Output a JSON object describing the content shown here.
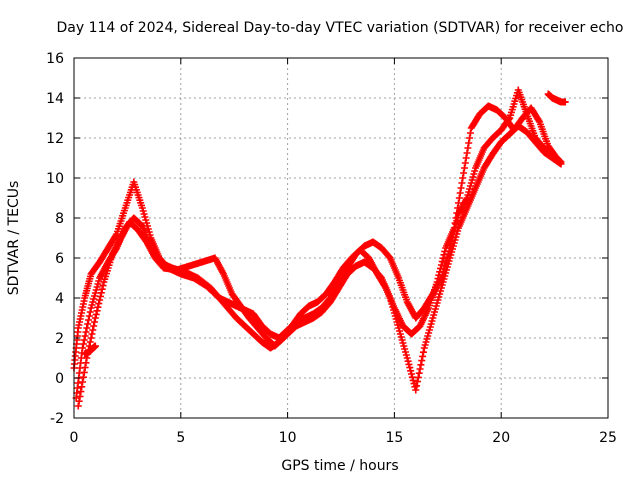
{
  "chart_data": {
    "type": "scatter",
    "title": "Day 114 of 2024, Sidereal Day-to-day VTEC variation (SDTVAR) for receiver echo",
    "xlabel": "GPS time / hours",
    "ylabel": "SDTVAR / TECUs",
    "xlim": [
      0,
      25
    ],
    "ylim": [
      -2,
      16
    ],
    "xticks": [
      0,
      5,
      10,
      15,
      20,
      25
    ],
    "yticks": [
      -2,
      0,
      2,
      4,
      6,
      8,
      10,
      12,
      14,
      16
    ],
    "grid": true,
    "marker": "+",
    "color": "#ff0000",
    "series": [
      {
        "name": "track-1",
        "x": [
          0.0,
          0.2,
          0.5,
          0.8,
          1.2,
          1.6,
          2.0,
          2.4,
          2.8,
          3.2,
          3.6,
          4.0,
          4.4,
          5.0,
          5.6,
          6.2,
          6.8,
          7.2,
          7.6,
          8.0,
          8.4,
          8.8,
          9.2,
          9.6,
          10.0,
          10.4,
          10.8,
          11.2,
          11.6,
          12.0,
          12.4,
          12.8,
          13.2,
          13.6,
          14.0,
          14.4,
          14.8,
          15.2,
          15.6,
          16.0,
          16.4,
          16.8,
          17.2,
          17.6,
          18.0,
          18.4,
          18.8,
          19.2,
          19.6,
          20.0,
          20.4,
          20.8,
          21.2,
          21.6,
          22.0,
          22.4,
          22.8
        ],
        "y": [
          0.5,
          2.5,
          4.0,
          5.2,
          5.8,
          6.5,
          7.2,
          8.5,
          9.8,
          8.5,
          7.0,
          6.0,
          5.5,
          5.2,
          5.0,
          4.6,
          4.0,
          3.8,
          3.6,
          3.4,
          3.2,
          2.6,
          2.2,
          2.0,
          2.4,
          2.8,
          3.0,
          3.2,
          3.5,
          4.0,
          4.8,
          5.5,
          6.2,
          6.6,
          6.8,
          6.5,
          6.0,
          5.0,
          3.8,
          3.0,
          3.5,
          4.2,
          5.0,
          6.5,
          8.2,
          9.0,
          10.5,
          11.5,
          12.0,
          12.4,
          13.0,
          14.4,
          13.2,
          12.0,
          11.5,
          11.2,
          10.8
        ]
      },
      {
        "name": "track-2",
        "x": [
          0.1,
          0.4,
          0.8,
          1.2,
          1.6,
          2.0,
          2.4,
          2.8,
          3.2,
          3.6,
          4.0,
          4.6,
          5.2,
          5.8,
          6.4,
          6.8,
          7.2,
          7.6,
          8.0,
          8.4,
          8.8,
          9.2,
          9.6,
          10.0,
          10.4,
          10.8,
          11.2,
          11.6,
          12.0,
          12.4,
          12.8,
          13.2,
          13.6,
          14.0,
          14.4,
          14.8,
          15.2,
          15.6,
          16.0,
          16.4,
          16.8,
          17.2,
          17.6,
          18.0,
          18.4,
          18.8,
          19.2,
          19.6,
          20.0,
          20.4,
          20.8,
          21.2,
          21.6,
          22.0,
          22.4,
          22.8
        ],
        "y": [
          -1.0,
          1.5,
          3.5,
          5.0,
          5.8,
          6.5,
          7.5,
          8.0,
          7.6,
          6.5,
          5.8,
          5.5,
          5.3,
          5.0,
          4.5,
          4.0,
          3.5,
          3.0,
          2.6,
          2.2,
          1.8,
          1.5,
          1.8,
          2.2,
          2.6,
          2.8,
          3.0,
          3.3,
          3.8,
          4.5,
          5.2,
          5.6,
          5.8,
          5.5,
          5.0,
          4.0,
          2.5,
          1.0,
          -0.6,
          1.5,
          3.0,
          4.5,
          6.0,
          7.5,
          8.5,
          9.5,
          10.5,
          11.2,
          11.8,
          12.2,
          12.6,
          12.3,
          11.8,
          11.3,
          11.0,
          10.7
        ]
      },
      {
        "name": "track-3",
        "x": [
          0.2,
          0.6,
          1.0,
          1.4,
          1.8,
          2.2,
          2.6,
          3.0,
          3.4,
          3.8,
          4.2,
          4.8,
          5.4,
          6.0,
          6.6,
          7.0,
          7.4,
          7.8,
          8.2,
          8.6,
          9.0,
          9.4,
          9.8,
          10.2,
          10.6,
          11.0,
          11.4,
          11.8,
          12.2,
          12.6,
          13.0,
          13.4,
          13.8,
          14.2,
          14.6,
          15.0,
          15.4,
          15.8,
          16.2,
          16.6,
          17.0,
          17.4,
          17.8,
          18.2,
          18.6,
          19.0,
          19.4,
          19.8,
          20.2,
          20.6,
          21.0,
          21.4,
          21.8,
          22.2,
          22.6
        ],
        "y": [
          -1.4,
          1.0,
          3.0,
          4.8,
          6.2,
          7.0,
          7.8,
          7.4,
          6.8,
          6.0,
          5.5,
          5.4,
          5.6,
          5.8,
          6.0,
          5.2,
          4.2,
          3.6,
          3.0,
          2.5,
          2.0,
          1.6,
          2.0,
          2.6,
          3.2,
          3.6,
          3.8,
          4.2,
          4.8,
          5.5,
          6.0,
          6.4,
          6.0,
          5.2,
          4.5,
          3.5,
          2.6,
          2.2,
          2.6,
          3.5,
          4.8,
          6.5,
          7.5,
          10.0,
          12.5,
          13.2,
          13.6,
          13.4,
          13.0,
          12.4,
          13.0,
          13.5,
          12.8,
          11.6,
          11.0
        ]
      },
      {
        "name": "track-4",
        "x": [
          0.5,
          0.7,
          0.9,
          1.0
        ],
        "y": [
          1.2,
          1.3,
          1.5,
          1.6
        ]
      },
      {
        "name": "track-5",
        "x": [
          22.2,
          22.4,
          22.6,
          22.8,
          23.0
        ],
        "y": [
          14.2,
          14.0,
          13.9,
          13.8,
          13.8
        ]
      }
    ]
  }
}
